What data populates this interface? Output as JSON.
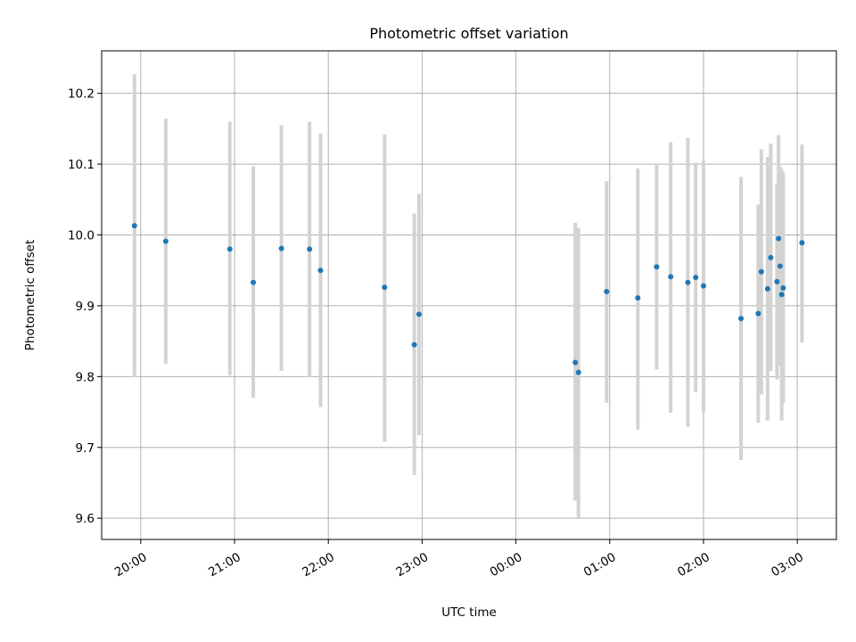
{
  "chart_data": {
    "type": "scatter",
    "title": "Photometric offset variation",
    "xlabel": "UTC time",
    "ylabel": "Photometric offset",
    "x_ticks": [
      "20:00",
      "21:00",
      "22:00",
      "23:00",
      "00:00",
      "01:00",
      "02:00",
      "03:00"
    ],
    "y_ticks": [
      "9.6",
      "9.7",
      "9.8",
      "9.9",
      "10.0",
      "10.1",
      "10.2"
    ],
    "xlim": [
      "19:35",
      "03:25"
    ],
    "ylim": [
      9.57,
      10.26
    ],
    "grid": true,
    "colors": {
      "point": "#1f77b4",
      "errorbar": "#d3d3d3",
      "grid": "#b0b0b0"
    },
    "points": [
      {
        "x": "19:56",
        "y": 10.013,
        "ylo": 9.799,
        "yhi": 10.227
      },
      {
        "x": "20:16",
        "y": 9.991,
        "ylo": 9.818,
        "yhi": 10.164
      },
      {
        "x": "20:57",
        "y": 9.98,
        "ylo": 9.802,
        "yhi": 10.16
      },
      {
        "x": "21:12",
        "y": 9.933,
        "ylo": 9.77,
        "yhi": 10.097
      },
      {
        "x": "21:30",
        "y": 9.981,
        "ylo": 9.808,
        "yhi": 10.155
      },
      {
        "x": "21:48",
        "y": 9.98,
        "ylo": 9.799,
        "yhi": 10.16
      },
      {
        "x": "21:55",
        "y": 9.95,
        "ylo": 9.757,
        "yhi": 10.143
      },
      {
        "x": "22:36",
        "y": 9.926,
        "ylo": 9.708,
        "yhi": 10.142
      },
      {
        "x": "22:55",
        "y": 9.845,
        "ylo": 9.661,
        "yhi": 10.03
      },
      {
        "x": "22:58",
        "y": 9.888,
        "ylo": 9.717,
        "yhi": 10.058
      },
      {
        "x": "00:38",
        "y": 9.82,
        "ylo": 9.625,
        "yhi": 10.017
      },
      {
        "x": "00:40",
        "y": 9.806,
        "ylo": 9.601,
        "yhi": 10.01
      },
      {
        "x": "00:58",
        "y": 9.92,
        "ylo": 9.763,
        "yhi": 10.076
      },
      {
        "x": "01:18",
        "y": 9.911,
        "ylo": 9.725,
        "yhi": 10.094
      },
      {
        "x": "01:30",
        "y": 9.955,
        "ylo": 9.81,
        "yhi": 10.1
      },
      {
        "x": "01:39",
        "y": 9.941,
        "ylo": 9.749,
        "yhi": 10.131
      },
      {
        "x": "01:50",
        "y": 9.933,
        "ylo": 9.729,
        "yhi": 10.137
      },
      {
        "x": "01:55",
        "y": 9.94,
        "ylo": 9.778,
        "yhi": 10.102
      },
      {
        "x": "02:00",
        "y": 9.928,
        "ylo": 9.75,
        "yhi": 10.105
      },
      {
        "x": "02:24",
        "y": 9.882,
        "ylo": 9.682,
        "yhi": 10.082
      },
      {
        "x": "02:35",
        "y": 9.889,
        "ylo": 9.735,
        "yhi": 10.043
      },
      {
        "x": "02:37",
        "y": 9.948,
        "ylo": 9.775,
        "yhi": 10.121
      },
      {
        "x": "02:41",
        "y": 9.924,
        "ylo": 9.738,
        "yhi": 10.11
      },
      {
        "x": "02:43",
        "y": 9.968,
        "ylo": 9.808,
        "yhi": 10.129
      },
      {
        "x": "02:47",
        "y": 9.934,
        "ylo": 9.796,
        "yhi": 10.073
      },
      {
        "x": "02:48",
        "y": 9.995,
        "ylo": 9.849,
        "yhi": 10.141
      },
      {
        "x": "02:49",
        "y": 9.956,
        "ylo": 9.815,
        "yhi": 10.096
      },
      {
        "x": "02:50",
        "y": 9.916,
        "ylo": 9.738,
        "yhi": 10.093
      },
      {
        "x": "02:51",
        "y": 9.925,
        "ylo": 9.763,
        "yhi": 10.088
      },
      {
        "x": "03:03",
        "y": 9.989,
        "ylo": 9.848,
        "yhi": 10.128
      }
    ]
  }
}
